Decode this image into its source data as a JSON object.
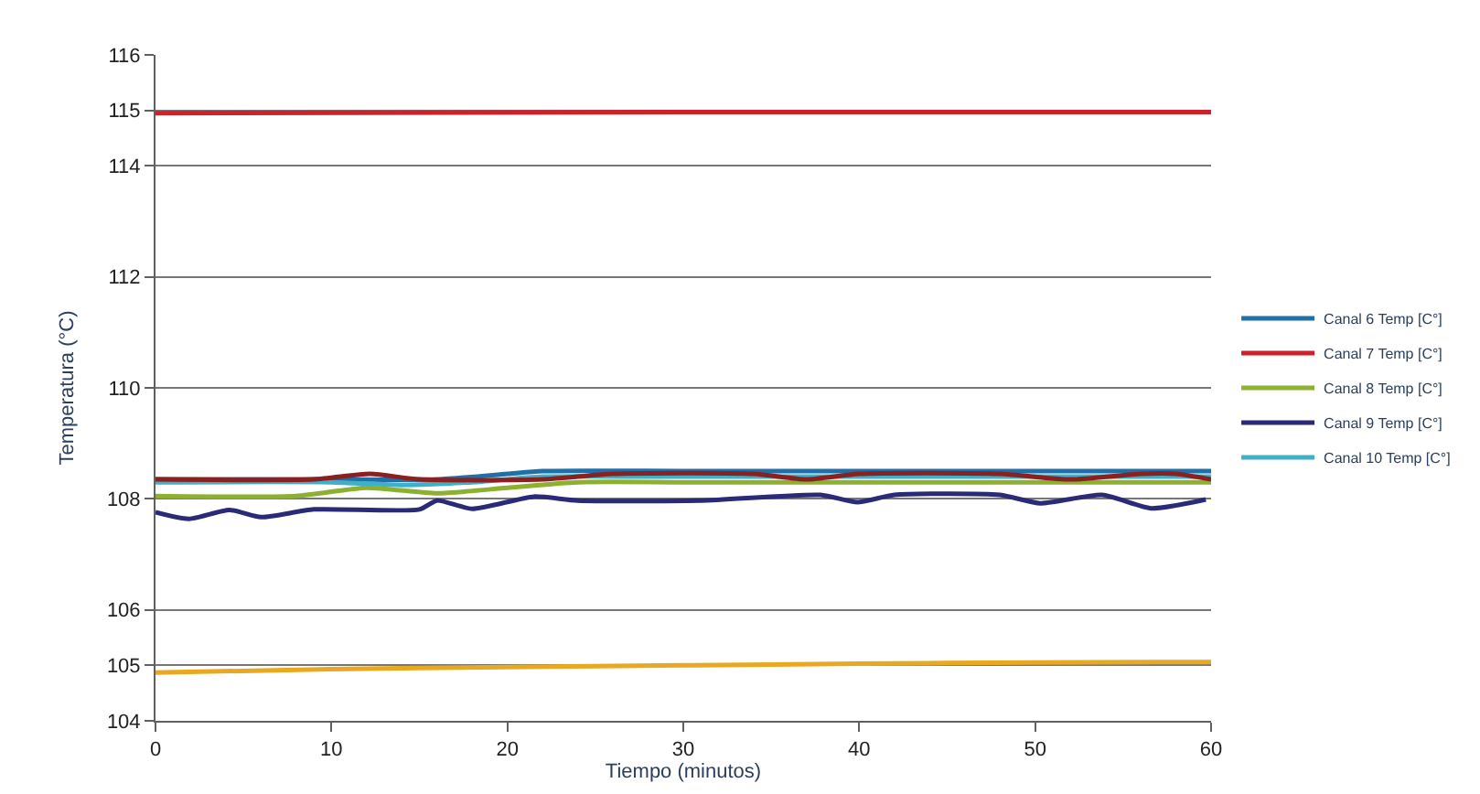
{
  "chart_data": {
    "type": "line",
    "xlabel": "Tiempo (minutos)",
    "ylabel": "Temperatura (°C)",
    "xlim": [
      0,
      60
    ],
    "xticks": [
      0,
      10,
      20,
      30,
      40,
      50,
      60
    ],
    "ylim": [
      104,
      116
    ],
    "yticks": [
      104,
      105,
      106,
      108,
      110,
      112,
      114,
      115,
      116
    ],
    "grid": "y",
    "legend": "right",
    "marker": "none",
    "line_style": "solid",
    "series": [
      {
        "name": "Canal 6 Temp [C°]",
        "color": "#1f6fa8",
        "x": [
          0,
          10,
          16,
          20,
          22,
          30,
          40,
          50,
          60
        ],
        "values": [
          108.35,
          108.35,
          108.35,
          108.45,
          108.5,
          108.5,
          108.5,
          108.5,
          108.5
        ]
      },
      {
        "name": "Canal 7 Temp [C°]",
        "color": "#d0202a",
        "x": [
          0,
          30,
          60
        ],
        "values": [
          114.95,
          114.97,
          114.97
        ]
      },
      {
        "name": "Canal 8 Temp [C°]",
        "color": "#8cb030",
        "x": [
          0,
          8,
          12,
          16,
          20,
          24,
          30,
          40,
          50,
          60
        ],
        "values": [
          108.05,
          108.05,
          108.2,
          108.1,
          108.2,
          108.3,
          108.3,
          108.3,
          108.3,
          108.3
        ]
      },
      {
        "name": "Canal 9 Temp [C°]",
        "color": "#2a2a78",
        "x": [
          0,
          1.9,
          4.2,
          6,
          9,
          15,
          16,
          18,
          21.5,
          24,
          31,
          37.8,
          39.9,
          42,
          48,
          50.3,
          53.8,
          56.6,
          59.7
        ],
        "values": [
          107.76,
          107.64,
          107.8,
          107.67,
          107.81,
          107.81,
          107.97,
          107.82,
          108.04,
          107.97,
          107.97,
          108.07,
          107.94,
          108.07,
          108.07,
          107.92,
          108.07,
          107.83,
          107.99
        ]
      },
      {
        "name": "Canal 10 Temp [C°]",
        "color": "#40b0c8",
        "x": [
          0,
          10,
          14,
          18,
          22,
          30,
          40,
          50,
          60
        ],
        "values": [
          108.3,
          108.3,
          108.25,
          108.3,
          108.4,
          108.4,
          108.4,
          108.4,
          108.4
        ]
      },
      {
        "color": "#8a2020",
        "x": [
          0,
          9,
          12.2,
          15,
          22,
          26,
          34,
          37,
          40,
          48,
          52,
          56,
          58,
          60
        ],
        "values": [
          108.35,
          108.35,
          108.45,
          108.35,
          108.35,
          108.45,
          108.45,
          108.35,
          108.45,
          108.45,
          108.35,
          108.45,
          108.45,
          108.35
        ]
      },
      {
        "color": "#e8a820",
        "x": [
          0,
          10,
          20,
          30,
          40,
          50,
          60
        ],
        "values": [
          104.87,
          104.93,
          104.97,
          105.0,
          105.03,
          105.05,
          105.06
        ]
      }
    ]
  }
}
